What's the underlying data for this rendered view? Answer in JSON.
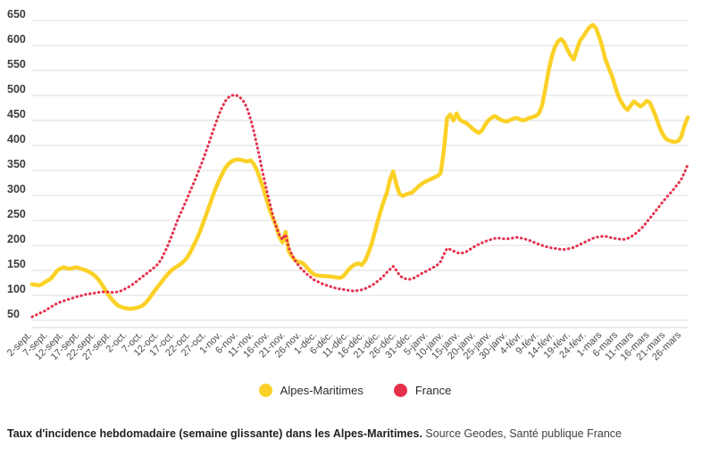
{
  "chart_data": {
    "type": "line",
    "title": "",
    "xlabel": "",
    "ylabel": "",
    "ylim": [
      50,
      650
    ],
    "y_ticks": [
      50,
      100,
      150,
      200,
      250,
      300,
      350,
      400,
      450,
      500,
      550,
      600,
      650
    ],
    "grid": "horizontal",
    "legend_position": "bottom-center",
    "x_start_date": "2-sept.",
    "x_tick_interval_days": 5,
    "x_tick_labels": [
      "2-sept.",
      "7-sept.",
      "12-sept.",
      "17-sept.",
      "22-sept.",
      "27-sept.",
      "2-oct.",
      "7-oct.",
      "12-oct.",
      "17-oct.",
      "22-oct.",
      "27-oct.",
      "1-nov.",
      "6-nov.",
      "11-nov.",
      "16-nov.",
      "21-nov.",
      "26-nov.",
      "1-déc.",
      "6-déc.",
      "11-déc.",
      "16-déc.",
      "21-déc.",
      "26-déc.",
      "31-déc.",
      "5-janv.",
      "10-janv.",
      "15-janv.",
      "20-janv.",
      "25-janv.",
      "30-janv.",
      "4-févr.",
      "9-févr.",
      "14-févr.",
      "19-févr.",
      "24-févr.",
      "1-mars",
      "6-mars",
      "11-mars",
      "16-mars",
      "21-mars",
      "26-mars"
    ],
    "series": [
      {
        "name": "Alpes-Maritimes",
        "color": "#FBD127",
        "style": "solid",
        "values": [
          122,
          121,
          120,
          122,
          126,
          130,
          134,
          142,
          150,
          154,
          156,
          154,
          153,
          155,
          156,
          154,
          152,
          150,
          147,
          143,
          138,
          131,
          122,
          112,
          102,
          93,
          86,
          80,
          77,
          75,
          74,
          73,
          74,
          75,
          77,
          80,
          86,
          94,
          103,
          112,
          120,
          128,
          136,
          144,
          150,
          155,
          159,
          163,
          169,
          176,
          187,
          200,
          213,
          228,
          245,
          262,
          280,
          298,
          315,
          330,
          343,
          355,
          363,
          368,
          371,
          372,
          371,
          369,
          368,
          370,
          363,
          350,
          333,
          314,
          292,
          271,
          255,
          240,
          218,
          206,
          227,
          188,
          178,
          170,
          167,
          166,
          161,
          154,
          147,
          142,
          140,
          139,
          139,
          138,
          138,
          137,
          136,
          135,
          137,
          144,
          152,
          158,
          162,
          164,
          161,
          168,
          182,
          200,
          222,
          246,
          268,
          288,
          305,
          332,
          348,
          322,
          303,
          299,
          302,
          304,
          306,
          312,
          318,
          323,
          327,
          330,
          333,
          336,
          339,
          345,
          390,
          455,
          462,
          450,
          464,
          452,
          448,
          445,
          440,
          434,
          429,
          425,
          430,
          441,
          450,
          455,
          459,
          455,
          451,
          449,
          448,
          451,
          454,
          455,
          452,
          450,
          452,
          455,
          457,
          459,
          464,
          480,
          512,
          548,
          576,
          596,
          608,
          613,
          606,
          592,
          580,
          572,
          592,
          610,
          618,
          628,
          637,
          641,
          635,
          618,
          598,
          572,
          556,
          540,
          520,
          500,
          487,
          477,
          471,
          480,
          488,
          483,
          478,
          482,
          489,
          486,
          472,
          456,
          438,
          424,
          414,
          410,
          408,
          407,
          409,
          418,
          440,
          456
        ]
      },
      {
        "name": "France",
        "color": "#E5304C",
        "style": "dotted",
        "values": [
          57,
          60,
          63,
          66,
          69,
          73,
          77,
          81,
          84,
          87,
          89,
          91,
          93,
          95,
          97,
          99,
          100,
          102,
          103,
          104,
          105,
          106,
          107,
          107,
          107,
          106,
          106,
          107,
          109,
          112,
          115,
          119,
          123,
          128,
          133,
          138,
          143,
          148,
          153,
          158,
          165,
          175,
          188,
          202,
          218,
          235,
          252,
          266,
          280,
          295,
          310,
          325,
          340,
          356,
          372,
          390,
          408,
          427,
          445,
          462,
          477,
          489,
          496,
          500,
          501,
          499,
          494,
          486,
          472,
          452,
          428,
          400,
          370,
          340,
          312,
          285,
          260,
          238,
          222,
          212,
          222,
          196,
          182,
          170,
          161,
          153,
          147,
          141,
          136,
          131,
          128,
          125,
          122,
          120,
          118,
          116,
          114,
          113,
          112,
          111,
          110,
          109,
          109,
          110,
          111,
          113,
          116,
          119,
          123,
          128,
          133,
          139,
          146,
          152,
          158,
          150,
          140,
          135,
          133,
          132,
          133,
          136,
          140,
          144,
          147,
          150,
          154,
          157,
          161,
          168,
          182,
          194,
          192,
          189,
          186,
          184,
          185,
          187,
          191,
          195,
          199,
          202,
          205,
          208,
          210,
          212,
          214,
          215,
          214,
          213,
          213,
          214,
          215,
          216,
          215,
          214,
          212,
          210,
          207,
          205,
          202,
          200,
          198,
          196,
          195,
          194,
          193,
          192,
          192,
          193,
          194,
          196,
          199,
          202,
          205,
          208,
          211,
          214,
          216,
          217,
          218,
          218,
          217,
          215,
          214,
          213,
          212,
          212,
          214,
          217,
          221,
          226,
          232,
          238,
          246,
          254,
          262,
          270,
          278,
          286,
          294,
          301,
          308,
          316,
          324,
          333,
          346,
          362
        ]
      }
    ]
  },
  "legend": {
    "items": [
      {
        "label": "Alpes-Maritimes",
        "color": "#FBD127"
      },
      {
        "label": "France",
        "color": "#E5304C"
      }
    ]
  },
  "caption": {
    "bold": "Taux d'incidence hebdomadaire (semaine glissante) dans les Alpes-Maritimes.",
    "regular": " Source Geodes, Santé publique France"
  },
  "colors": {
    "grid": "#dddddd",
    "y_label": "#3d3d3d",
    "x_label": "#4d4d4d"
  }
}
